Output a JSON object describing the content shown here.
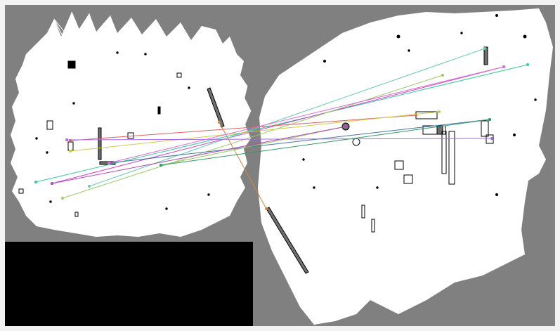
{
  "colors": {
    "border": "#f2f2f2",
    "unknown_space": "#808080",
    "free_space": "#ffffff",
    "obstacle": "#000000",
    "empty_panel": "#000000"
  },
  "match_lines": [
    {
      "color": "#33cc99"
    },
    {
      "color": "#cc44cc"
    },
    {
      "color": "#99cc66"
    },
    {
      "color": "#66ccaa"
    },
    {
      "color": "#e06060"
    },
    {
      "color": "#cccc44"
    },
    {
      "color": "#aa66ee"
    },
    {
      "color": "#4477aa"
    },
    {
      "color": "#88cc55"
    },
    {
      "color": "#cc8844"
    },
    {
      "color": "#bb44bb"
    },
    {
      "color": "#339966"
    },
    {
      "color": "#dd66dd"
    }
  ]
}
